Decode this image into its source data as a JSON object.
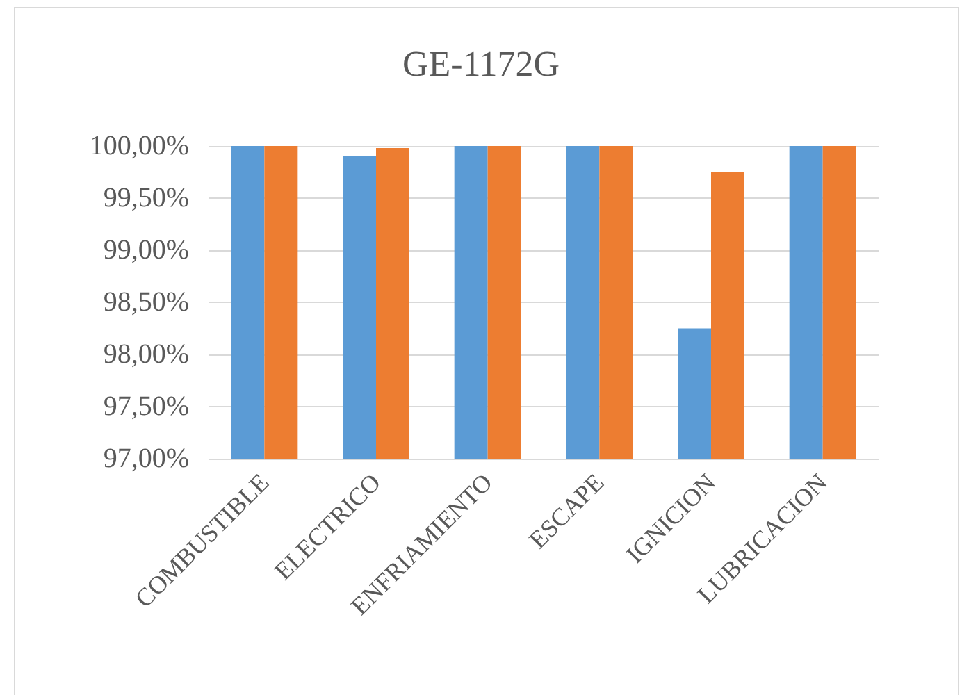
{
  "chart_data": {
    "type": "bar",
    "title": "GE-1172G",
    "categories": [
      "COMBUSTIBLE",
      "ELECTRICO",
      "ENFRIAMIENTO",
      "ESCAPE",
      "IGNICION",
      "LUBRICACION"
    ],
    "series": [
      {
        "color": "#5b9bd5",
        "values": [
          100,
          99.9,
          100,
          100,
          98.25,
          100
        ]
      },
      {
        "color": "#ed7d31",
        "values": [
          100,
          99.98,
          100,
          100,
          99.75,
          100
        ]
      }
    ],
    "ylim": [
      97,
      100
    ],
    "yticks": [
      {
        "value": 97,
        "label": "97,00%"
      },
      {
        "value": 97.5,
        "label": "97,50%"
      },
      {
        "value": 98,
        "label": "98,00%"
      },
      {
        "value": 98.5,
        "label": "98,50%"
      },
      {
        "value": 99,
        "label": "99,00%"
      },
      {
        "value": 99.5,
        "label": "99,50%"
      },
      {
        "value": 100,
        "label": "100,00%"
      }
    ],
    "grid": "y"
  }
}
